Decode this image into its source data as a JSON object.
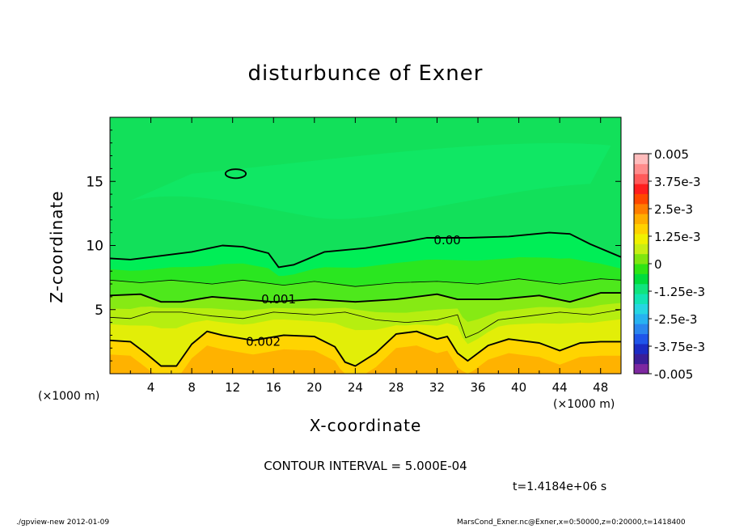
{
  "title": "disturbunce of Exner",
  "xlabel": "X-coordinate",
  "ylabel": "Z-coordinate",
  "x_unit_left": "(×1000 m)",
  "x_unit_right": "(×1000 m)",
  "contour_interval": "CONTOUR INTERVAL = 5.000E-04",
  "time_label": "t=1.4184e+06 s",
  "footer_left": "./gpview-new   2012-01-09",
  "footer_right": "MarsCond_Exner.nc@Exner,x=0:50000,z=0:20000,t=1418400",
  "chart_data": {
    "type": "heatmap",
    "title": "disturbunce of Exner",
    "xlabel": "X-coordinate",
    "ylabel": "Z-coordinate",
    "xlim": [
      0,
      50
    ],
    "ylim": [
      0,
      20
    ],
    "x_ticks": [
      4,
      8,
      12,
      16,
      20,
      24,
      28,
      32,
      36,
      40,
      44,
      48
    ],
    "y_ticks": [
      5,
      10,
      15
    ],
    "contour_interval": 0.0005,
    "contour_labels": [
      {
        "text": "0.00",
        "x": 33,
        "z": 10.4
      },
      {
        "text": "0.001",
        "x": 16.5,
        "z": 5.8
      },
      {
        "text": "0.002",
        "x": 15,
        "z": 2.5
      }
    ],
    "contours": [
      {
        "level": 0.0,
        "style": "thick",
        "points": [
          [
            0,
            9.0
          ],
          [
            2,
            8.9
          ],
          [
            4,
            9.1
          ],
          [
            8,
            9.5
          ],
          [
            11,
            10.0
          ],
          [
            13,
            9.9
          ],
          [
            15.5,
            9.4
          ],
          [
            16.5,
            8.3
          ],
          [
            18,
            8.5
          ],
          [
            21,
            9.5
          ],
          [
            25,
            9.8
          ],
          [
            29,
            10.3
          ],
          [
            31,
            10.6
          ],
          [
            35,
            10.6
          ],
          [
            39,
            10.7
          ],
          [
            43,
            11.0
          ],
          [
            45,
            10.9
          ],
          [
            47,
            10.1
          ],
          [
            50,
            9.1
          ]
        ]
      },
      {
        "level": 0.0005,
        "style": "thin",
        "points": [
          [
            0,
            7.3
          ],
          [
            3,
            7.1
          ],
          [
            6,
            7.3
          ],
          [
            10,
            7.0
          ],
          [
            13,
            7.3
          ],
          [
            17,
            6.9
          ],
          [
            20,
            7.2
          ],
          [
            24,
            6.8
          ],
          [
            28,
            7.1
          ],
          [
            32,
            7.2
          ],
          [
            36,
            7.0
          ],
          [
            40,
            7.4
          ],
          [
            44,
            7.0
          ],
          [
            48,
            7.4
          ],
          [
            50,
            7.3
          ]
        ]
      },
      {
        "level": 0.001,
        "style": "thick",
        "points": [
          [
            0,
            6.1
          ],
          [
            3,
            6.2
          ],
          [
            5,
            5.6
          ],
          [
            7,
            5.6
          ],
          [
            10,
            6.0
          ],
          [
            13,
            5.8
          ],
          [
            16,
            5.6
          ],
          [
            20,
            5.8
          ],
          [
            24,
            5.6
          ],
          [
            28,
            5.8
          ],
          [
            32,
            6.2
          ],
          [
            34,
            5.8
          ],
          [
            38,
            5.8
          ],
          [
            42,
            6.1
          ],
          [
            45,
            5.6
          ],
          [
            48,
            6.3
          ],
          [
            50,
            6.3
          ]
        ]
      },
      {
        "level": 0.0015,
        "style": "thin",
        "points": [
          [
            0,
            4.4
          ],
          [
            2,
            4.3
          ],
          [
            4,
            4.8
          ],
          [
            7,
            4.8
          ],
          [
            10,
            4.5
          ],
          [
            13,
            4.3
          ],
          [
            16,
            4.8
          ],
          [
            20,
            4.6
          ],
          [
            23,
            4.8
          ],
          [
            26,
            4.2
          ],
          [
            29,
            4.0
          ],
          [
            32,
            4.2
          ],
          [
            34,
            4.6
          ],
          [
            34.8,
            2.8
          ],
          [
            36,
            3.2
          ],
          [
            38,
            4.2
          ],
          [
            41,
            4.5
          ],
          [
            44,
            4.8
          ],
          [
            47,
            4.6
          ],
          [
            50,
            5.0
          ]
        ]
      },
      {
        "level": 0.002,
        "style": "thick",
        "points": [
          [
            0,
            2.6
          ],
          [
            2,
            2.5
          ],
          [
            3.5,
            1.6
          ],
          [
            5,
            0.6
          ],
          [
            6.5,
            0.6
          ],
          [
            8,
            2.3
          ],
          [
            9.5,
            3.3
          ],
          [
            11,
            3.0
          ],
          [
            14,
            2.6
          ],
          [
            17,
            3.0
          ],
          [
            20,
            2.9
          ],
          [
            22,
            2.1
          ],
          [
            23,
            0.9
          ],
          [
            24,
            0.6
          ],
          [
            26,
            1.6
          ],
          [
            28,
            3.1
          ],
          [
            30,
            3.3
          ],
          [
            32,
            2.7
          ],
          [
            33,
            2.9
          ],
          [
            34,
            1.6
          ],
          [
            35,
            1.0
          ],
          [
            37,
            2.2
          ],
          [
            39,
            2.7
          ],
          [
            42,
            2.4
          ],
          [
            44,
            1.8
          ],
          [
            46,
            2.4
          ],
          [
            48,
            2.5
          ],
          [
            50,
            2.5
          ]
        ]
      }
    ],
    "closed_contours": [
      {
        "level": 0.0,
        "cx": 12.3,
        "cz": 15.6,
        "rx": 1.0,
        "rz": 0.35
      }
    ],
    "colorbar": {
      "min": -0.005,
      "max": 0.005,
      "tick_labels": [
        "0.005",
        "3.75e-3",
        "2.5e-3",
        "1.25e-3",
        "0",
        "-1.25e-3",
        "-2.5e-3",
        "-3.75e-3",
        "-0.005"
      ],
      "colors": [
        "#7d28a0",
        "#3a1e98",
        "#1b2bc4",
        "#1f55ea",
        "#2a86ee",
        "#27b2f0",
        "#26d6e2",
        "#12e4b4",
        "#10e47e",
        "#00dc3c",
        "#2fe414",
        "#7fe610",
        "#c8ee14",
        "#f0f000",
        "#ffd200",
        "#ffae00",
        "#ff7e00",
        "#ff4800",
        "#ff1e1e",
        "#ff5a5a",
        "#ff8c8c",
        "#ffbcbc"
      ]
    },
    "field_layers": [
      {
        "value": 0.0003,
        "color": "#00ee56"
      },
      {
        "value": 0.0006,
        "color": "#2ae620"
      },
      {
        "value": 0.0009,
        "color": "#4ee81c"
      },
      {
        "value": 0.0012,
        "color": "#86ea14"
      },
      {
        "value": 0.0015,
        "color": "#b6ee10"
      },
      {
        "value": 0.0018,
        "color": "#e2ee08"
      },
      {
        "value": 0.0021,
        "color": "#ffd400"
      },
      {
        "value": 0.0024,
        "color": "#ffb200"
      }
    ],
    "background_color": "#12e05a",
    "lighter_region_color": "#10e866"
  }
}
